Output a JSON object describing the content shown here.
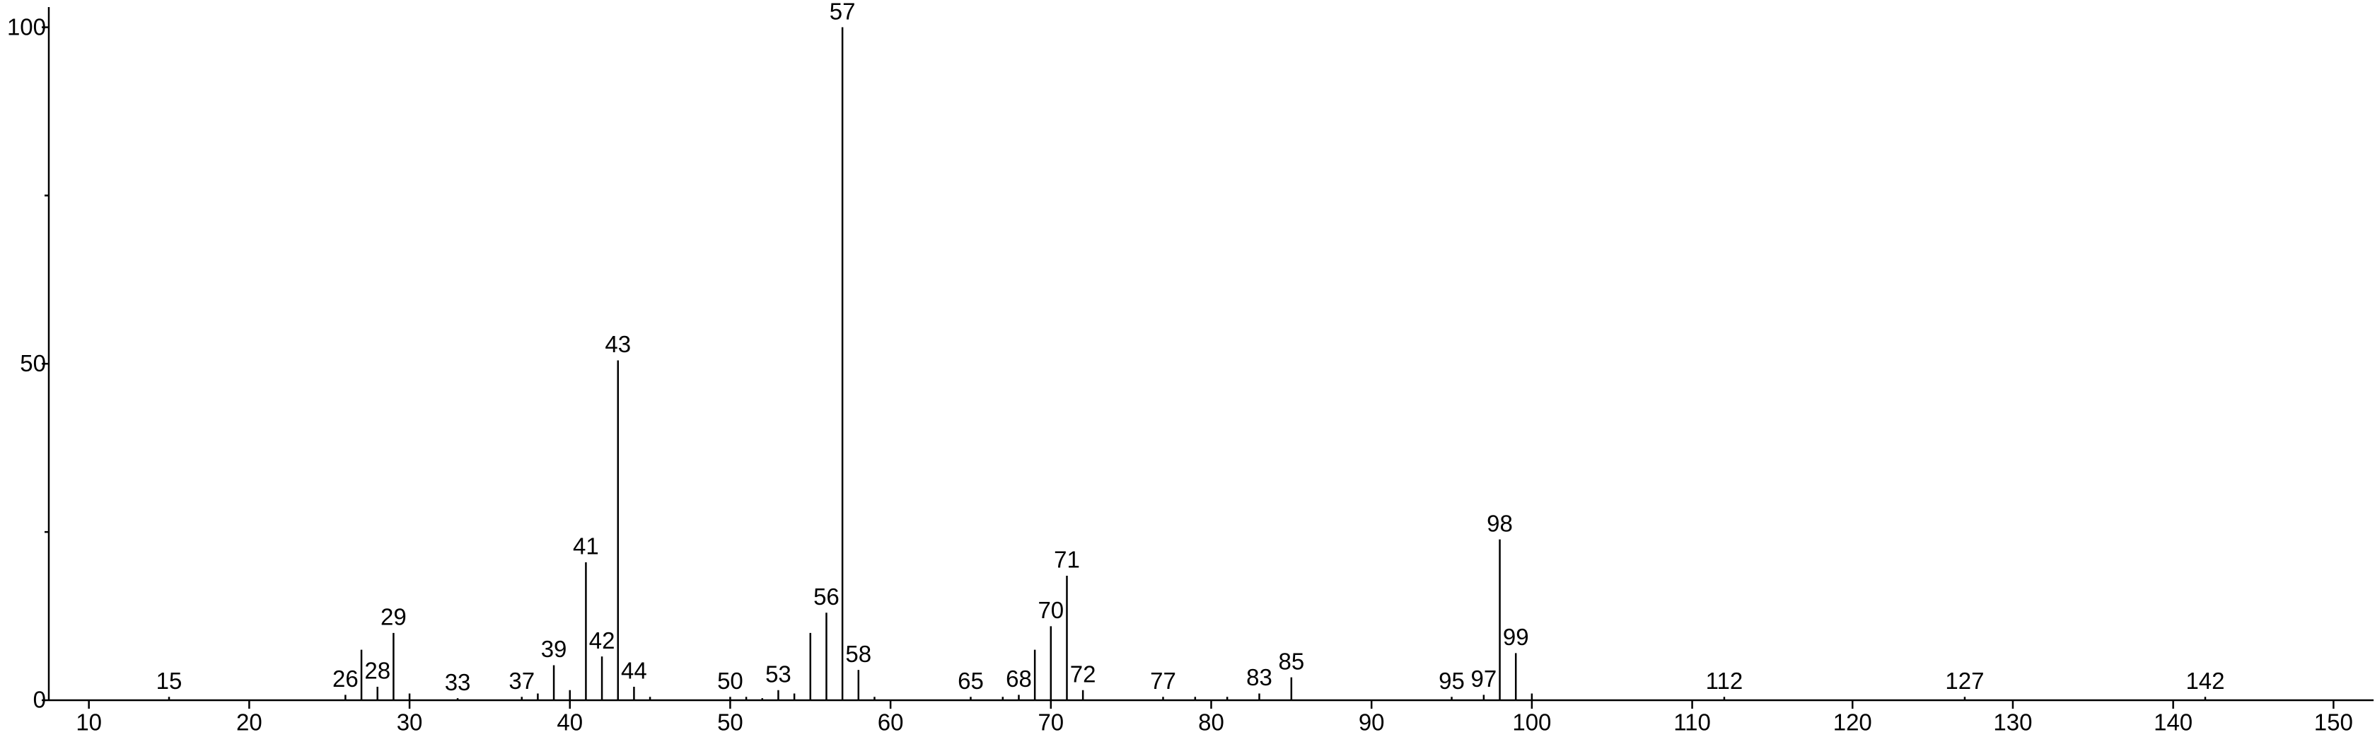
{
  "chart_data": {
    "type": "stem",
    "x": [
      15,
      26,
      27,
      28,
      29,
      30,
      33,
      37,
      38,
      39,
      40,
      41,
      42,
      43,
      44,
      45,
      50,
      51,
      52,
      53,
      54,
      55,
      56,
      57,
      58,
      59,
      65,
      67,
      68,
      69,
      70,
      71,
      72,
      77,
      79,
      81,
      83,
      85,
      95,
      97,
      98,
      99,
      100,
      112,
      127,
      142
    ],
    "values": [
      0.5,
      0.8,
      7.5,
      2,
      10,
      1,
      0.3,
      0.5,
      1,
      5.2,
      1.5,
      20.5,
      6.5,
      50.5,
      2,
      0.5,
      0.5,
      0.5,
      0.3,
      1.5,
      1,
      10,
      13,
      100,
      4.5,
      0.5,
      0.5,
      0.5,
      0.8,
      7.5,
      11,
      18.5,
      1.5,
      0.5,
      0.5,
      0.5,
      1,
      3.4,
      0.5,
      0.8,
      23.9,
      7,
      1,
      0.5,
      0.5,
      0.5
    ],
    "point_labels": [
      "15",
      "26",
      null,
      "28",
      "29",
      null,
      "33",
      "37",
      null,
      "39",
      null,
      "41",
      "42",
      "43",
      "44",
      null,
      "50",
      null,
      null,
      "53",
      null,
      null,
      "56",
      "57",
      "58",
      null,
      "65",
      null,
      "68",
      null,
      "70",
      "71",
      "72",
      "77",
      null,
      null,
      "83",
      "85",
      "95",
      "97",
      "98",
      "99",
      null,
      "112",
      "127",
      "142"
    ],
    "color": "#000000",
    "xlim": [
      7.5,
      152.5
    ],
    "xticks": [
      10,
      20,
      30,
      40,
      50,
      60,
      70,
      80,
      90,
      100,
      110,
      120,
      130,
      140,
      150
    ],
    "ylim": [
      0,
      103
    ],
    "yticks": [
      0,
      50,
      100
    ],
    "yticks_minor": [
      25,
      75
    ]
  }
}
